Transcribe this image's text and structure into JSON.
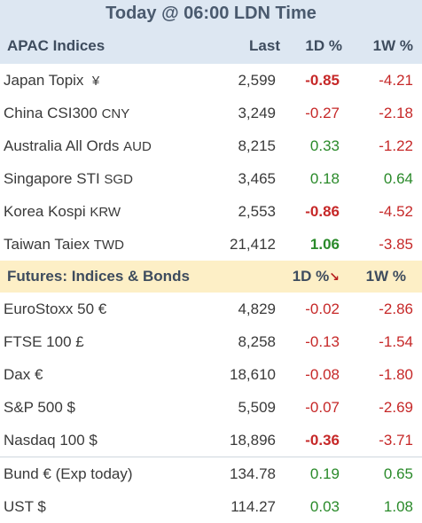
{
  "title": "Today @ 06:00 LDN Time",
  "apac": {
    "header": {
      "name": "APAC Indices",
      "last": "Last",
      "d1": "1D %",
      "w1": "1W %"
    },
    "rows": [
      {
        "name": "Japan Topix",
        "ccy": "¥",
        "last": "2,599",
        "d1": "-0.85",
        "w1": "-4.21",
        "d1_bold": true
      },
      {
        "name": "China CSI300",
        "ccy": "CNY",
        "last": "3,249",
        "d1": "-0.27",
        "w1": "-2.18",
        "d1_bold": false
      },
      {
        "name": "Australia All Ords",
        "ccy": "AUD",
        "last": "8,215",
        "d1": "0.33",
        "w1": "-1.22",
        "d1_bold": false
      },
      {
        "name": "Singapore STI",
        "ccy": "SGD",
        "last": "3,465",
        "d1": "0.18",
        "w1": "0.64",
        "d1_bold": false
      },
      {
        "name": "Korea Kospi",
        "ccy": "KRW",
        "last": "2,553",
        "d1": "-0.86",
        "w1": "-4.52",
        "d1_bold": true
      },
      {
        "name": "Taiwan Taiex",
        "ccy": "TWD",
        "last": "21,412",
        "d1": "1.06",
        "w1": "-3.85",
        "d1_bold": true
      }
    ]
  },
  "futures": {
    "header": {
      "name": "Futures: Indices & Bonds",
      "d1": "1D %",
      "w1": "1W %",
      "sort_icon": "sort-down-arrow-icon"
    },
    "rows": [
      {
        "name": "EuroStoxx 50 €",
        "ccy": "",
        "last": "4,829",
        "d1": "-0.02",
        "w1": "-2.86",
        "d1_bold": false
      },
      {
        "name": "FTSE 100  £",
        "ccy": "",
        "last": "8,258",
        "d1": "-0.13",
        "w1": "-1.54",
        "d1_bold": false
      },
      {
        "name": "Dax  €",
        "ccy": "",
        "last": "18,610",
        "d1": "-0.08",
        "w1": "-1.80",
        "d1_bold": false
      },
      {
        "name": "S&P 500 $",
        "ccy": "",
        "last": "5,509",
        "d1": "-0.07",
        "w1": "-2.69",
        "d1_bold": false
      },
      {
        "name": "Nasdaq 100 $",
        "ccy": "",
        "last": "18,896",
        "d1": "-0.36",
        "w1": "-3.71",
        "d1_bold": true
      },
      {
        "name": "Bund  € (Exp today)",
        "ccy": "",
        "last": "134.78",
        "d1": "0.19",
        "w1": "0.65",
        "d1_bold": false,
        "sep": true
      },
      {
        "name": "UST $",
        "ccy": "",
        "last": "114.27",
        "d1": "0.03",
        "w1": "1.08",
        "d1_bold": false
      }
    ]
  },
  "colors": {
    "positive": "#2a8a2a",
    "negative": "#c62828",
    "header_blue": "#dde7f2",
    "header_yellow": "#fdefc6"
  }
}
